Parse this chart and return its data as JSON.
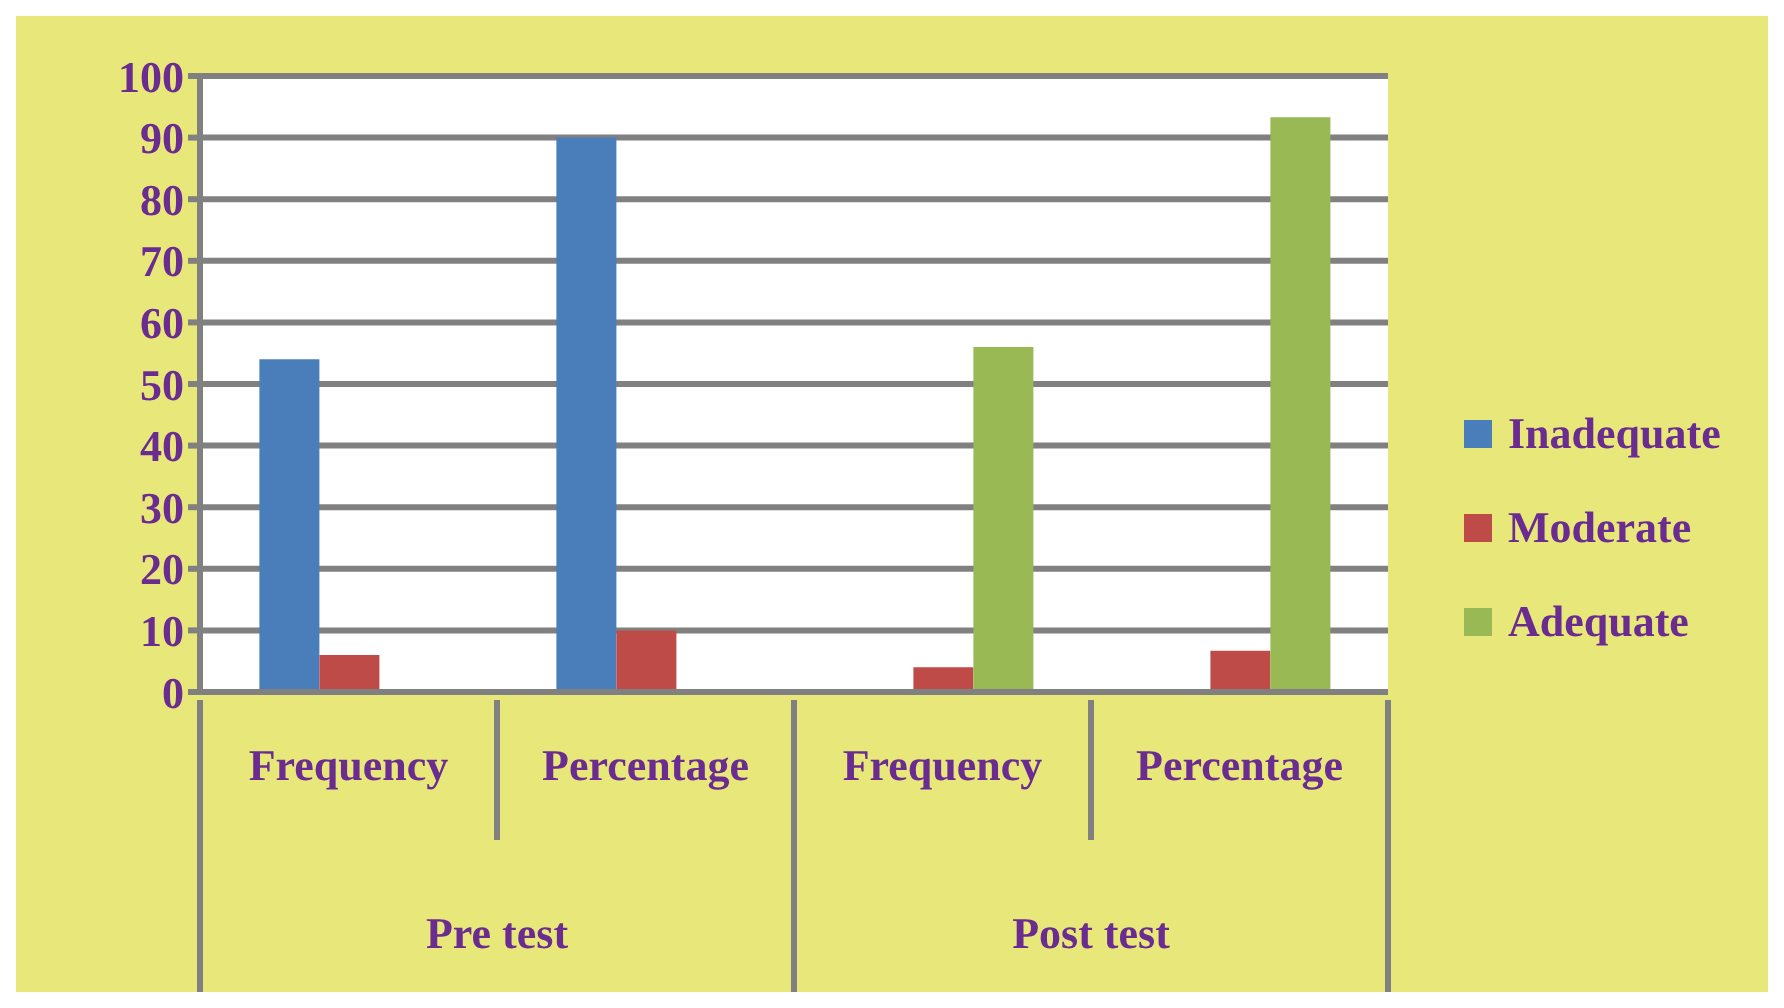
{
  "chart_data": {
    "type": "bar",
    "categories": [
      "Frequency",
      "Percentage",
      "Frequency",
      "Percentage"
    ],
    "annotations": [
      "Pre test",
      "Post test"
    ],
    "series": [
      {
        "name": "Inadequate",
        "color": "#4a7ebb",
        "values": [
          54,
          90,
          null,
          null
        ]
      },
      {
        "name": "Moderate",
        "color": "#be4b48",
        "values": [
          6,
          10,
          4,
          6.7
        ]
      },
      {
        "name": "Adequate",
        "color": "#98b954",
        "values": [
          null,
          null,
          56,
          93.3
        ]
      }
    ],
    "ylim": [
      0,
      100
    ],
    "yticks": [
      0,
      10,
      20,
      30,
      40,
      50,
      60,
      70,
      80,
      90,
      100
    ],
    "grid": "y",
    "legend": "right"
  }
}
